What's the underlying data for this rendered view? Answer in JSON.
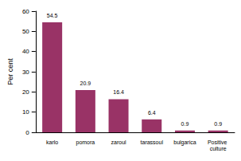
{
  "chart_data": {
    "type": "bar",
    "categories": [
      "karlo",
      "pomora",
      "zaroul",
      "tarassoul",
      "bulgarica",
      "Positive culture"
    ],
    "values": [
      54.5,
      20.9,
      16.4,
      6.4,
      0.9,
      0.9
    ],
    "color": "#993366",
    "y_label": "Per cent",
    "ylim": [
      0,
      60
    ],
    "yticks": [
      0,
      10,
      20,
      30,
      40,
      50,
      60
    ],
    "grid": false,
    "data_labels": true
  }
}
